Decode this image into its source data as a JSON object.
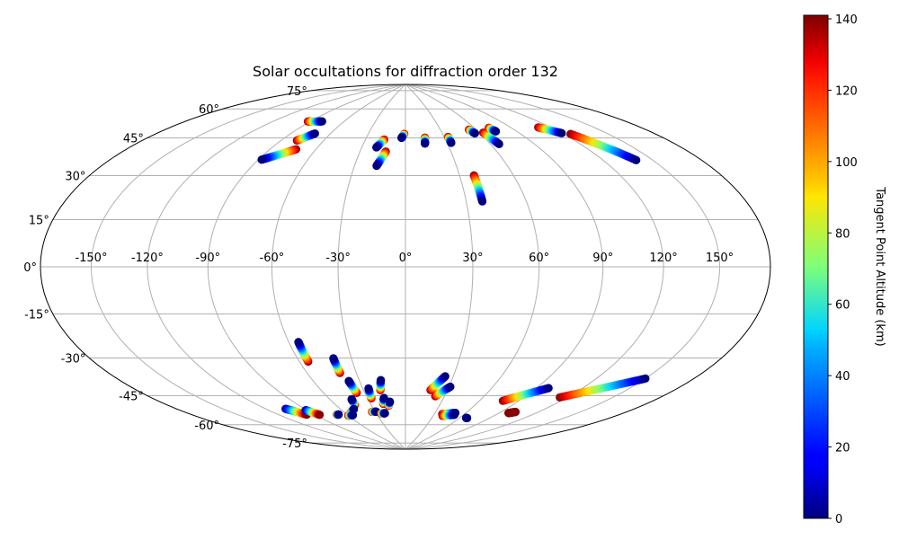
{
  "chart_data": {
    "type": "scatter",
    "projection": "hammer",
    "title": "Solar occultations for diffraction order 132",
    "x_ticks": [
      "-150°",
      "-120°",
      "-90°",
      "-60°",
      "-30°",
      "0°",
      "30°",
      "60°",
      "90°",
      "120°",
      "150°"
    ],
    "x_tick_values": [
      -150,
      -120,
      -90,
      -60,
      -30,
      0,
      30,
      60,
      90,
      120,
      150
    ],
    "y_ticks": [
      "-75°",
      "-60°",
      "-45°",
      "-30°",
      "-15°",
      "0°",
      "15°",
      "30°",
      "45°",
      "60°",
      "75°"
    ],
    "y_tick_values": [
      -75,
      -60,
      -45,
      -30,
      -15,
      0,
      15,
      30,
      45,
      60,
      75
    ],
    "grid": true,
    "colorbar": {
      "label": "Tangent Point Altitude (km)",
      "ticks": [
        "0",
        "20",
        "40",
        "60",
        "80",
        "100",
        "120",
        "140"
      ],
      "tick_values": [
        0,
        20,
        40,
        60,
        80,
        100,
        120,
        140
      ],
      "range": [
        0,
        141
      ],
      "colormap": "jet"
    },
    "series": [
      {
        "lon_start": -92,
        "lat_start": 65,
        "lon_end": -80,
        "lat_end": 66,
        "alt_start": 140,
        "alt_end": 0
      },
      {
        "lon_start": -79,
        "lat_start": 56,
        "lon_end": -72,
        "lat_end": 60,
        "alt_start": 140,
        "alt_end": 0
      },
      {
        "lon_start": -73,
        "lat_start": 52,
        "lon_end": -88,
        "lat_end": 46,
        "alt_start": 140,
        "alt_end": 0
      },
      {
        "lon_start": -16,
        "lat_start": 59,
        "lon_end": -20,
        "lat_end": 55,
        "alt_start": 140,
        "alt_end": 0
      },
      {
        "lon_start": -13,
        "lat_start": 53,
        "lon_end": -17,
        "lat_end": 46,
        "alt_start": 140,
        "alt_end": 0
      },
      {
        "lon_start": -1,
        "lat_start": 62,
        "lon_end": -3,
        "lat_end": 60,
        "alt_start": 140,
        "alt_end": 0
      },
      {
        "lon_start": 15,
        "lat_start": 60,
        "lon_end": 14,
        "lat_end": 57,
        "alt_start": 140,
        "alt_end": 0
      },
      {
        "lon_start": 33,
        "lat_start": 60,
        "lon_end": 33,
        "lat_end": 57,
        "alt_start": 140,
        "alt_end": 0
      },
      {
        "lon_start": 38,
        "lat_start": 41,
        "lon_end": 38,
        "lat_end": 29,
        "alt_start": 140,
        "alt_end": 0
      },
      {
        "lon_start": 54,
        "lat_start": 63,
        "lon_end": 56,
        "lat_end": 61,
        "alt_start": 140,
        "alt_end": 0
      },
      {
        "lon_start": 63,
        "lat_start": 61,
        "lon_end": 66,
        "lat_end": 55,
        "alt_start": 140,
        "alt_end": 0
      },
      {
        "lon_start": 72,
        "lat_start": 63,
        "lon_end": 74,
        "lat_end": 61,
        "alt_start": 140,
        "alt_end": 0
      },
      {
        "lon_start": 111,
        "lat_start": 60,
        "lon_end": 120,
        "lat_end": 56,
        "alt_start": 140,
        "alt_end": 0
      },
      {
        "lon_start": 125,
        "lat_start": 55,
        "lon_end": 140,
        "lat_end": 41,
        "alt_start": 140,
        "alt_end": 0
      },
      {
        "lon_start": -55,
        "lat_start": -42,
        "lon_end": -55,
        "lat_end": -33,
        "alt_start": 140,
        "alt_end": 0
      },
      {
        "lon_start": -40,
        "lat_start": -48,
        "lon_end": -40,
        "lat_end": -41,
        "alt_start": 140,
        "alt_end": 0
      },
      {
        "lon_start": -36,
        "lat_start": -58,
        "lon_end": -37,
        "lat_end": -52,
        "alt_start": 140,
        "alt_end": 0
      },
      {
        "lon_start": -27,
        "lat_start": -61,
        "lon_end": -26,
        "lat_end": -56,
        "alt_start": 140,
        "alt_end": 0
      },
      {
        "lon_start": -18,
        "lat_start": -57,
        "lon_end": -16,
        "lat_end": -52,
        "alt_start": 140,
        "alt_end": 0
      },
      {
        "lon_start": -19,
        "lat_start": -64,
        "lon_end": -17,
        "lat_end": -61,
        "alt_start": 140,
        "alt_end": 0
      },
      {
        "lon_start": -15,
        "lat_start": -65,
        "lon_end": -13,
        "lat_end": -63,
        "alt_start": 140,
        "alt_end": 0
      },
      {
        "lon_start": -44,
        "lat_start": -64,
        "lon_end": -43,
        "lat_end": -61,
        "alt_start": 140,
        "alt_end": 0
      },
      {
        "lon_start": -52,
        "lat_start": -67,
        "lon_end": -48,
        "lat_end": -66,
        "alt_start": 140,
        "alt_end": 0
      },
      {
        "lon_start": -60,
        "lat_start": -69,
        "lon_end": -55,
        "lat_end": -69,
        "alt_start": 140,
        "alt_end": 0
      },
      {
        "lon_start": -70,
        "lat_start": -68,
        "lon_end": -68,
        "lat_end": -68,
        "alt_start": 140,
        "alt_end": 0
      },
      {
        "lon_start": -33,
        "lat_start": -68,
        "lon_end": -29,
        "lat_end": -68,
        "alt_start": 140,
        "alt_end": 0
      },
      {
        "lon_start": -25,
        "lat_start": -69,
        "lon_end": -21,
        "lat_end": -69,
        "alt_start": 140,
        "alt_end": 0
      },
      {
        "lon_start": -105,
        "lat_start": -62,
        "lon_end": -97,
        "lat_end": -66,
        "alt_start": 0,
        "alt_end": 140
      },
      {
        "lon_start": -91,
        "lat_start": -64,
        "lon_end": -86,
        "lat_end": -67,
        "alt_start": 0,
        "alt_end": 140
      },
      {
        "lon_start": 18,
        "lat_start": -57,
        "lon_end": 25,
        "lat_end": -50,
        "alt_start": 140,
        "alt_end": 0
      },
      {
        "lon_start": 23,
        "lat_start": -60,
        "lon_end": 31,
        "lat_end": -55,
        "alt_start": 140,
        "alt_end": 0
      },
      {
        "lon_start": 38,
        "lat_start": -69,
        "lon_end": 50,
        "lat_end": -68,
        "alt_start": 140,
        "alt_end": 0
      },
      {
        "lon_start": 40,
        "lat_start": -70,
        "lon_end": 51,
        "lat_end": -69,
        "alt_start": 140,
        "alt_end": 0
      },
      {
        "lon_start": 67,
        "lat_start": -70,
        "lon_end": 68,
        "lat_end": -70,
        "alt_start": 0,
        "alt_end": 0
      },
      {
        "lon_start": 78,
        "lat_start": -60,
        "lon_end": 98,
        "lat_end": -52,
        "alt_start": 140,
        "alt_end": 0
      },
      {
        "lon_start": 98,
        "lat_start": -65,
        "lon_end": 102,
        "lat_end": -64,
        "alt_start": 140,
        "alt_end": 140
      },
      {
        "lon_start": 115,
        "lat_start": -55,
        "lon_end": 150,
        "lat_end": -42,
        "alt_start": 140,
        "alt_end": 0
      }
    ]
  }
}
